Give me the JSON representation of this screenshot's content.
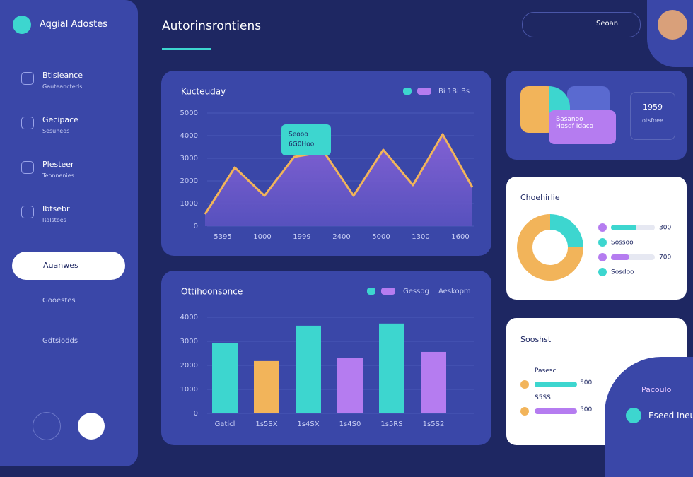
{
  "sidebar": {
    "brand": "Aqgial Adostes",
    "items": [
      {
        "label": "Btisieance",
        "sub": "Gauteancterls"
      },
      {
        "label": "Gecipace",
        "sub": "Sesuheds"
      },
      {
        "label": "Plesteer",
        "sub": "Teonnenies"
      },
      {
        "label": "Ibtsebr",
        "sub": "Ralstoes"
      }
    ],
    "active": "Auanwes",
    "links": [
      "Gooestes",
      "Gdtsiodds"
    ]
  },
  "header": {
    "title": "Autorinsrontiens",
    "search": "Seoan"
  },
  "line_chart": {
    "type": "line",
    "title": "Kucteuday",
    "legend": "Bi 1Bi Bs",
    "tooltip": [
      "Seooo",
      "6G0Hoo"
    ],
    "x_labels": [
      "5395",
      "1000",
      "1999",
      "2400",
      "5000",
      "1300",
      "1600"
    ],
    "values": [
      531,
      2594,
      1344,
      3063,
      3280,
      1344,
      3375,
      1813,
      4063,
      1719
    ],
    "color": "#f2b45a",
    "ylim": [
      0,
      5000
    ],
    "yticks": [
      0,
      1000,
      2000,
      3000,
      4000,
      5000
    ]
  },
  "bar_chart": {
    "type": "bar",
    "title": "Ottihoonsonce",
    "legend": [
      "Gessog",
      "Aeskopm"
    ],
    "categories": [
      "Gaticl",
      "1s5SX",
      "1s4SX",
      "1s4S0",
      "1s5RS",
      "1s5S2"
    ],
    "values": [
      2940,
      2180,
      3650,
      2320,
      3740,
      2560
    ],
    "colors": [
      "#3dd6cf",
      "#f2b45a",
      "#3dd6cf",
      "#b57cf0",
      "#3dd6cf",
      "#b57cf0"
    ],
    "ylim": [
      0,
      4000
    ],
    "yticks": [
      0,
      1000,
      2000,
      3000,
      4000
    ]
  },
  "top_card": {
    "value": "1959",
    "sub": "otsfnee",
    "tooltip": [
      "Basanoo",
      "Hosdf Idaco"
    ]
  },
  "donut_card": {
    "type": "pie",
    "title": "Choehirlie",
    "values": [
      25,
      75
    ],
    "colors": [
      "#3dd6cf",
      "#f2b45a"
    ],
    "legend": [
      "300",
      "Sossoo",
      "700",
      "Sosdoo"
    ]
  },
  "summary_card": {
    "title": "Sooshst",
    "rows": [
      [
        "Pasesc",
        "500"
      ],
      [
        "S5SS",
        "500"
      ]
    ]
  },
  "promo": {
    "title": "Pacoulo",
    "text": "Eseed Ineu"
  }
}
